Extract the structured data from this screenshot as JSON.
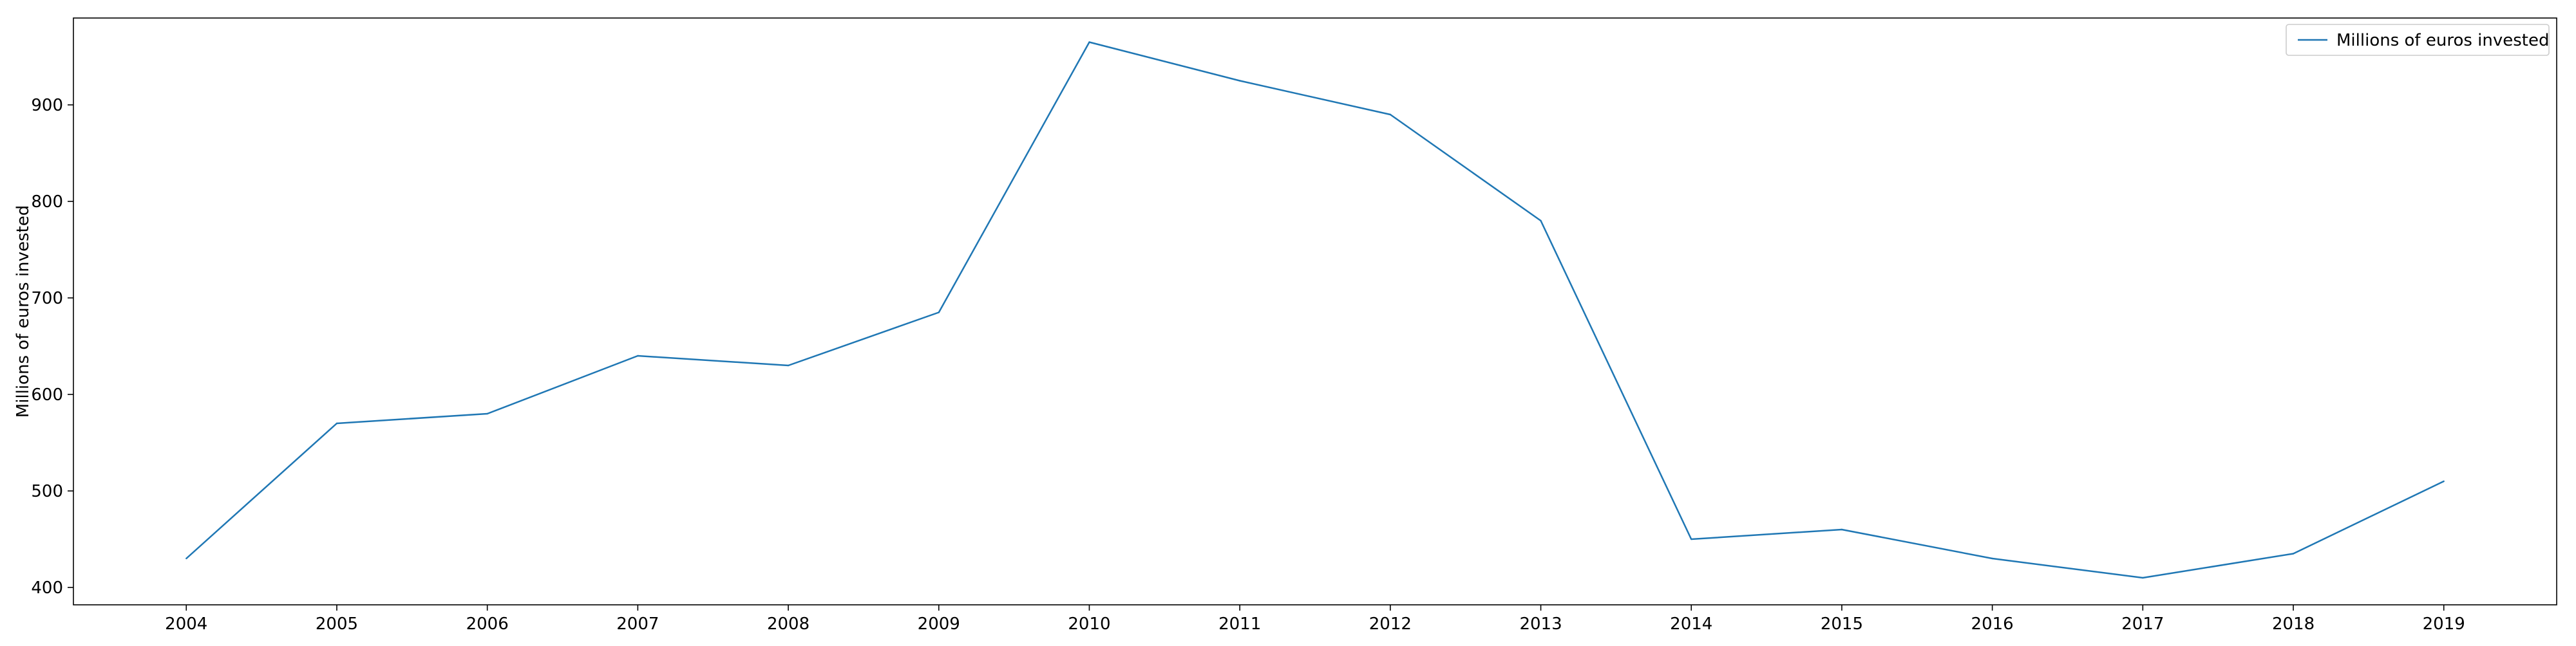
{
  "chart_data": {
    "type": "line",
    "title": "",
    "xlabel": "",
    "ylabel": "Millions of euros invested",
    "x": [
      2004,
      2005,
      2006,
      2007,
      2008,
      2009,
      2010,
      2011,
      2012,
      2013,
      2014,
      2015,
      2016,
      2017,
      2018,
      2019
    ],
    "series": [
      {
        "name": "Millions of euros invested",
        "color": "#1f77b4",
        "values": [
          430,
          570,
          580,
          640,
          630,
          685,
          965,
          925,
          890,
          780,
          450,
          460,
          430,
          410,
          435,
          510
        ]
      }
    ],
    "xlim": [
      2003.25,
      2019.75
    ],
    "ylim": [
      382,
      990
    ],
    "yticks": [
      400,
      500,
      600,
      700,
      800,
      900
    ],
    "grid": false,
    "legend": "top-right"
  }
}
